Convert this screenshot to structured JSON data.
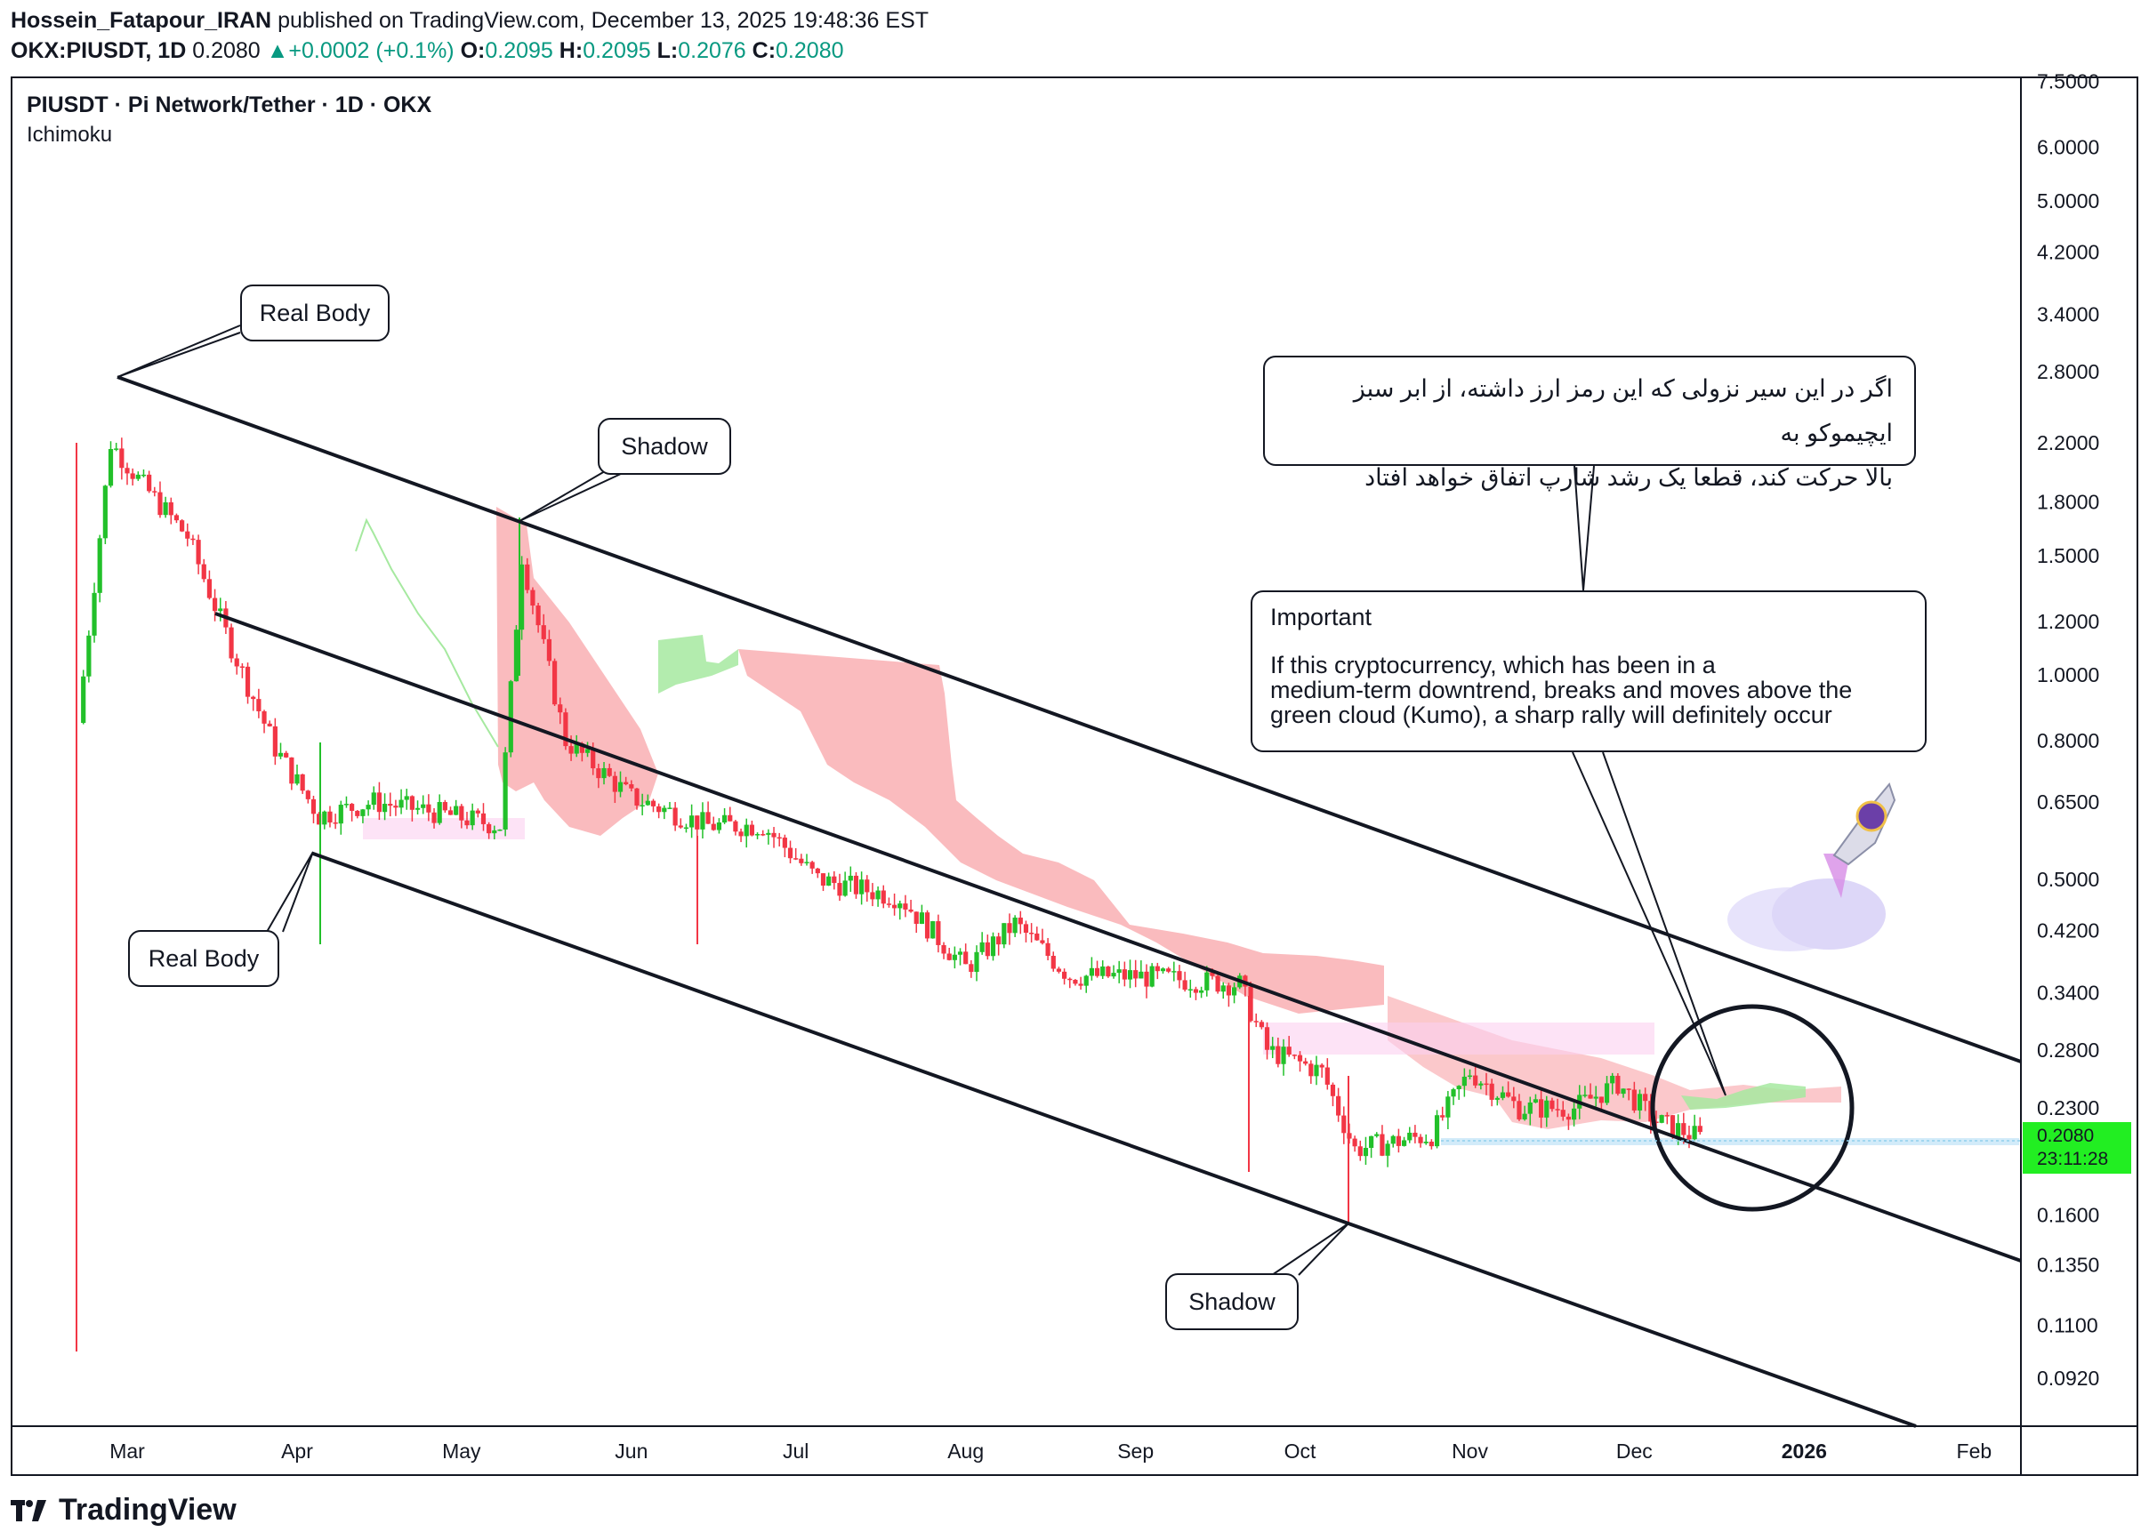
{
  "header": {
    "author": "Hossein_Fatapour_IRAN",
    "published_text": "published on TradingView.com, December 13, 2025 19:48:36 EST",
    "symbol": "OKX:PIUSDT, 1D",
    "price": "0.2080",
    "change": "+0.0002 (+0.1%)",
    "open_label": "O:",
    "open": "0.2095",
    "high_label": "H:",
    "high": "0.2095",
    "low_label": "L:",
    "low": "0.2076",
    "close_label": "C:",
    "close": "0.2080"
  },
  "legend": {
    "title": "PIUSDT · Pi Network/Tether · 1D · OKX",
    "indicator": "Ichimoku"
  },
  "annotations": {
    "real_body_top": "Real Body",
    "real_body_bottom": "Real Body",
    "shadow_top": "Shadow",
    "shadow_bottom": "Shadow",
    "farsi_line1": "اگر در این سیر نزولی که این رمز ارز داشته، از ابر سبز ایچیموکو به",
    "farsi_line2": "بالا حرکت کند، قطعا یک رشد شارپ اتفاق خواهد افتاد",
    "important_title": "Important",
    "important_line1": "If this cryptocurrency, which has been in a",
    "important_line2": "medium-term downtrend, breaks and moves above the",
    "important_line3": "green cloud (Kumo), a sharp rally will definitely occur"
  },
  "price_tag": {
    "value": "0.2080",
    "countdown": "23:11:28"
  },
  "branding": {
    "name": "TradingView"
  },
  "colors": {
    "up": "#22c02a",
    "down": "#f23645",
    "cloud_red": "#f8a4a8",
    "cloud_green": "#a6e9a0",
    "accent": "#089981"
  },
  "chart_data": {
    "type": "candlestick",
    "title": "PIUSDT · Pi Network/Tether · 1D · OKX",
    "y_scale": "log",
    "y_ticks": [
      "7.5000",
      "6.0000",
      "5.0000",
      "4.2000",
      "3.4000",
      "2.8000",
      "2.2000",
      "1.8000",
      "1.5000",
      "1.2000",
      "1.0000",
      "0.8000",
      "0.6500",
      "0.5000",
      "0.4200",
      "0.3400",
      "0.2800",
      "0.2300",
      "0.1600",
      "0.1350",
      "0.1100",
      "0.0920"
    ],
    "x_ticks": [
      "Mar",
      "Apr",
      "May",
      "Jun",
      "Jul",
      "Aug",
      "Sep",
      "Oct",
      "Nov",
      "Dec",
      "2026",
      "Feb"
    ],
    "last_price": 0.208,
    "ohlc_last": {
      "open": 0.2095,
      "high": 0.2095,
      "low": 0.2076,
      "close": 0.208
    },
    "approx_close_path": [
      {
        "date": "2025-02-20",
        "close": 0.85
      },
      {
        "date": "2025-02-26",
        "close": 2.2
      },
      {
        "date": "2025-03-04",
        "close": 1.9
      },
      {
        "date": "2025-03-12",
        "close": 1.6
      },
      {
        "date": "2025-03-20",
        "close": 1.1
      },
      {
        "date": "2025-03-28",
        "close": 0.78
      },
      {
        "date": "2025-04-05",
        "close": 0.62
      },
      {
        "date": "2025-04-15",
        "close": 0.65
      },
      {
        "date": "2025-04-25",
        "close": 0.63
      },
      {
        "date": "2025-05-08",
        "close": 0.6
      },
      {
        "date": "2025-05-12",
        "close": 1.5
      },
      {
        "date": "2025-05-20",
        "close": 0.8
      },
      {
        "date": "2025-06-01",
        "close": 0.66
      },
      {
        "date": "2025-06-15",
        "close": 0.6
      },
      {
        "date": "2025-06-25",
        "close": 0.6
      },
      {
        "date": "2025-07-05",
        "close": 0.5
      },
      {
        "date": "2025-07-20",
        "close": 0.47
      },
      {
        "date": "2025-08-01",
        "close": 0.37
      },
      {
        "date": "2025-08-10",
        "close": 0.43
      },
      {
        "date": "2025-08-20",
        "close": 0.36
      },
      {
        "date": "2025-09-01",
        "close": 0.36
      },
      {
        "date": "2025-09-20",
        "close": 0.35
      },
      {
        "date": "2025-09-25",
        "close": 0.28
      },
      {
        "date": "2025-10-05",
        "close": 0.26
      },
      {
        "date": "2025-10-11",
        "close": 0.2
      },
      {
        "date": "2025-10-25",
        "close": 0.21
      },
      {
        "date": "2025-11-01",
        "close": 0.26
      },
      {
        "date": "2025-11-10",
        "close": 0.23
      },
      {
        "date": "2025-11-20",
        "close": 0.23
      },
      {
        "date": "2025-11-28",
        "close": 0.25
      },
      {
        "date": "2025-12-05",
        "close": 0.22
      },
      {
        "date": "2025-12-13",
        "close": 0.208
      }
    ]
  }
}
